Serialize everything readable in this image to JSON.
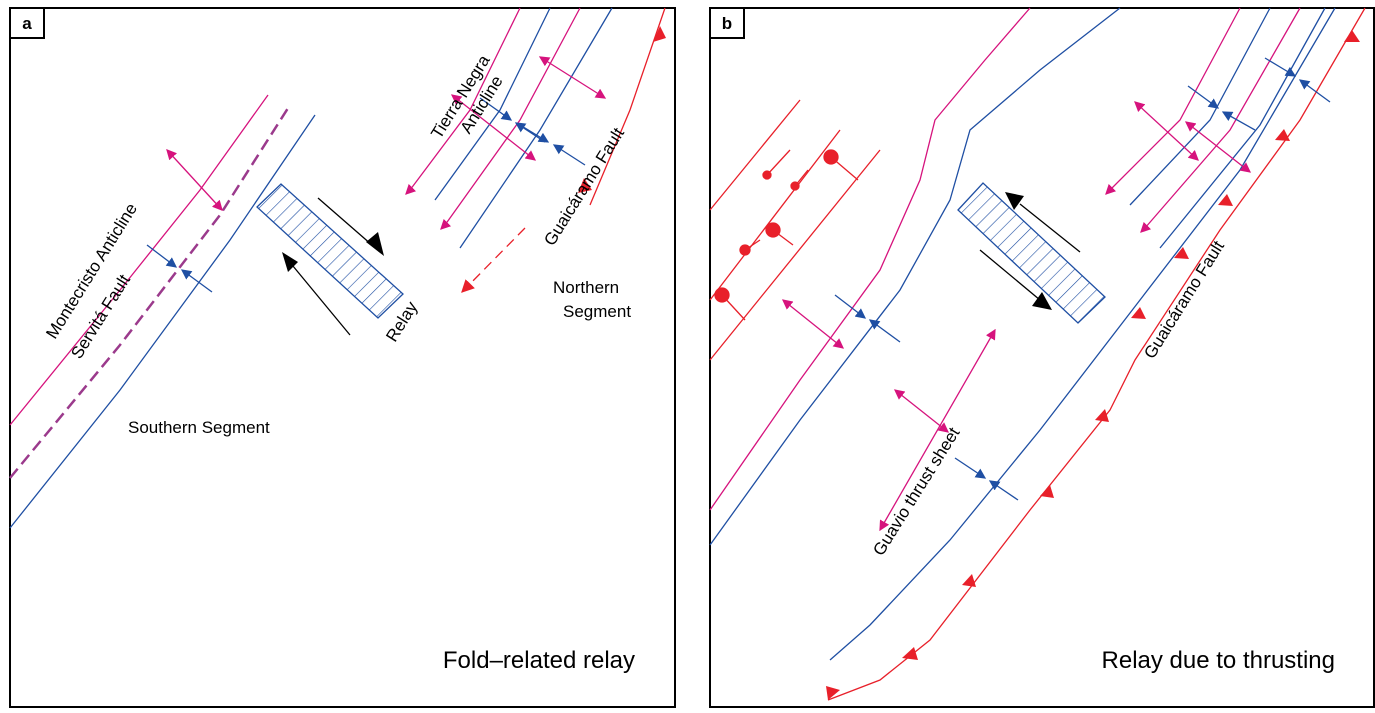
{
  "panels": [
    {
      "label": "a",
      "caption": "Fold–related relay",
      "tierra_negra": [
        "Tierra Negra",
        "Anticline"
      ],
      "guaicaramo": "Guaicáramo Fault",
      "montecristo": "Montecristo Anticline",
      "servita": "Servitá Fault",
      "relay": "Relay",
      "northern": [
        "Northern",
        "Segment"
      ],
      "southern": "Southern Segment"
    },
    {
      "label": "b",
      "caption": "Relay due to thrusting",
      "guaicaramo": "Guaicáramo Fault",
      "guavio": "Guavio thrust sheet"
    }
  ]
}
